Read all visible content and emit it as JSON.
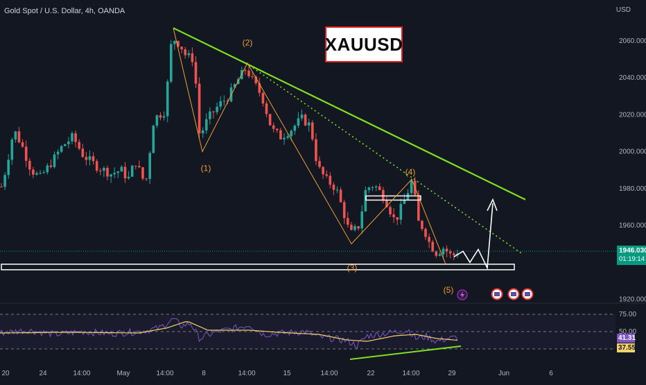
{
  "header": {
    "symbol_title": "Gold Spot / U.S. Dollar, 4h, OANDA",
    "currency": "USD",
    "badge": "XAUUSD"
  },
  "colors": {
    "background": "#131722",
    "bull": "#26a69a",
    "bear": "#ef5350",
    "trendline": "#7fe01f",
    "wave": "#f0a030",
    "rsi_line": "#7e57c2",
    "rsi_ma": "#f2d36b",
    "badge_border": "#e01e1e",
    "price_tag": "#089981"
  },
  "icons": [
    "lightning-event-icon",
    "us-flag-event-icon",
    "us-flag-event-icon",
    "us-flag-event-icon"
  ],
  "chart_data": {
    "type": "candlestick",
    "title": "Gold Spot / U.S. Dollar, 4h, OANDA",
    "price_axis": {
      "label": "USD",
      "range": [
        1915,
        2075
      ],
      "ticks": [
        "2060.000",
        "2040.000",
        "2020.000",
        "2000.000",
        "1980.000",
        "1960.000",
        "1920.000"
      ]
    },
    "time_axis": {
      "ticks": [
        "20",
        "24",
        "14:00",
        "May",
        "14:00",
        "8",
        "14:00",
        "15",
        "14:00",
        "22",
        "14:00",
        "29",
        "Jun",
        "6"
      ]
    },
    "last_price": "1946.030",
    "countdown": "01:19:14",
    "waves": [
      {
        "label": "(1)",
        "price": 2000
      },
      {
        "label": "(2)",
        "price": 2048
      },
      {
        "label": "(3)",
        "price": 1950
      },
      {
        "label": "(4)",
        "price": 1985
      },
      {
        "label": "(5)",
        "price": 1939
      }
    ],
    "trendline": {
      "from": 2067,
      "to": 1974
    },
    "support_zone": [
      1936,
      1939
    ],
    "rsi": {
      "levels": [
        "75.00",
        "50.00"
      ],
      "level_values": [
        75,
        50,
        25
      ],
      "range": [
        10,
        90
      ],
      "last_rsi": "41.31",
      "last_ma": "37.55"
    },
    "grid": false,
    "legend": "none"
  }
}
